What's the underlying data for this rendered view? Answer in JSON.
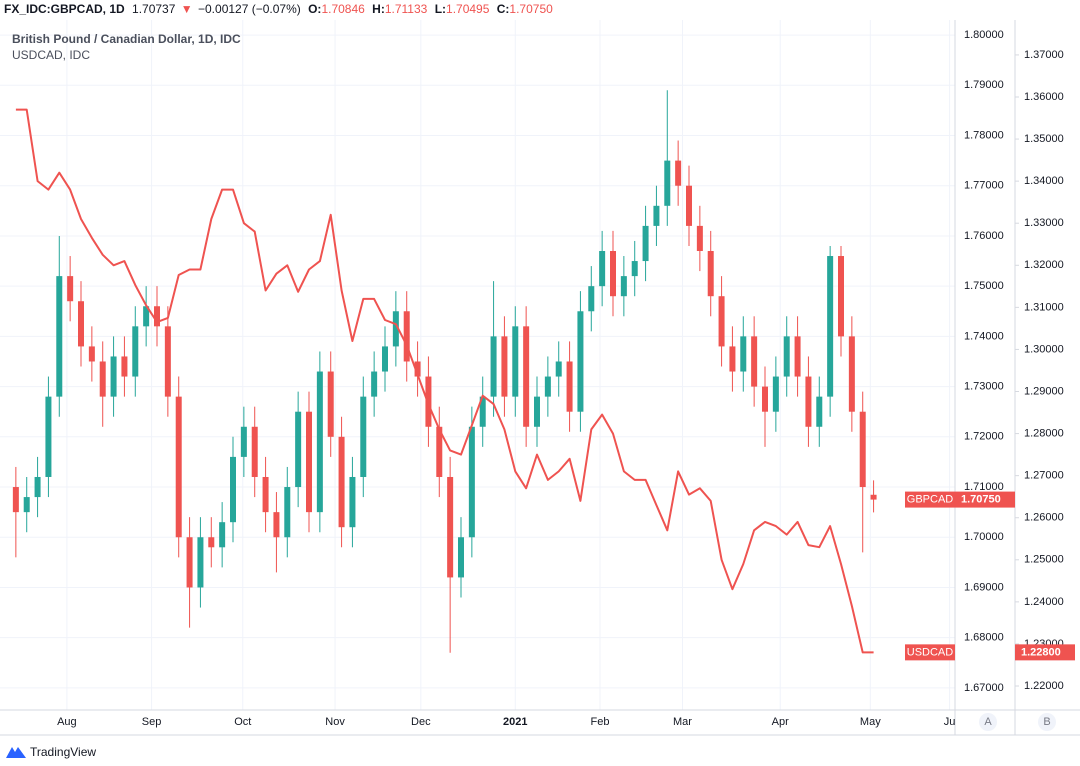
{
  "header": {
    "symbol": "FX_IDC:GBPCAD, 1D",
    "last": "1.70737",
    "arrow": "▼",
    "change": "−0.00127 (−0.07%)",
    "o_key": "O:",
    "o": "1.70846",
    "h_key": "H:",
    "h": "1.71133",
    "l_key": "L:",
    "l": "1.70495",
    "c_key": "C:",
    "c": "1.70750"
  },
  "chart_data": {
    "type": "candlestick",
    "title": "British Pound / Canadian Dollar, 1D, IDC",
    "subtitle": "USDCAD, IDC",
    "categories": [
      null,
      null,
      null,
      null,
      null,
      null,
      null,
      null,
      null,
      null,
      null,
      null,
      null,
      null,
      null,
      null,
      null,
      null,
      null,
      null,
      null,
      null,
      null,
      null,
      null,
      null,
      null,
      null,
      null,
      null,
      null,
      null,
      null,
      null,
      null,
      null,
      null,
      null,
      null,
      null,
      null,
      null,
      null,
      null,
      null,
      null,
      null,
      null,
      null,
      null,
      null,
      null,
      null,
      null,
      null,
      null,
      null,
      null,
      null,
      null,
      null,
      null,
      null,
      null,
      null,
      null,
      null,
      null,
      null,
      null,
      null,
      null,
      null,
      null,
      null,
      null,
      null,
      null,
      null,
      null
    ],
    "xlim": [
      -1,
      86.5
    ],
    "xticks": [
      {
        "value": 4.7,
        "label": "Aug"
      },
      {
        "value": 12.5,
        "label": "Sep"
      },
      {
        "value": 20.9,
        "label": "Oct"
      },
      {
        "value": 29.4,
        "label": "Nov"
      },
      {
        "value": 37.3,
        "label": "Dec"
      },
      {
        "value": 46,
        "label": "2021"
      },
      {
        "value": 53.8,
        "label": "Feb"
      },
      {
        "value": 61.4,
        "label": "Mar"
      },
      {
        "value": 70.4,
        "label": "Apr"
      },
      {
        "value": 78.7,
        "label": "May"
      },
      {
        "value": 86,
        "label": "Ju"
      }
    ],
    "ylim": [
      1.6656,
      1.803
    ],
    "yticks": [
      {
        "value": 1.67,
        "label": "1.67000"
      },
      {
        "value": 1.68,
        "label": "1.68000"
      },
      {
        "value": 1.69,
        "label": "1.69000"
      },
      {
        "value": 1.7,
        "label": "1.70000"
      },
      {
        "value": 1.71,
        "label": "1.71000"
      },
      {
        "value": 1.72,
        "label": "1.72000"
      },
      {
        "value": 1.73,
        "label": "1.73000"
      },
      {
        "value": 1.74,
        "label": "1.74000"
      },
      {
        "value": 1.75,
        "label": "1.75000"
      },
      {
        "value": 1.76,
        "label": "1.76000"
      },
      {
        "value": 1.77,
        "label": "1.77000"
      },
      {
        "value": 1.78,
        "label": "1.78000"
      },
      {
        "value": 1.79,
        "label": "1.79000"
      },
      {
        "value": 1.8,
        "label": "1.80000"
      }
    ],
    "y2lim": [
      1.2143,
      1.3783
    ],
    "y2ticks": [
      {
        "value": 1.22,
        "label": "1.22000"
      },
      {
        "value": 1.23,
        "label": "1.23000"
      },
      {
        "value": 1.24,
        "label": "1.24000"
      },
      {
        "value": 1.25,
        "label": "1.25000"
      },
      {
        "value": 1.26,
        "label": "1.26000"
      },
      {
        "value": 1.27,
        "label": "1.27000"
      },
      {
        "value": 1.28,
        "label": "1.28000"
      },
      {
        "value": 1.29,
        "label": "1.29000"
      },
      {
        "value": 1.3,
        "label": "1.30000"
      },
      {
        "value": 1.31,
        "label": "1.31000"
      },
      {
        "value": 1.32,
        "label": "1.32000"
      },
      {
        "value": 1.33,
        "label": "1.33000"
      },
      {
        "value": 1.34,
        "label": "1.34000"
      },
      {
        "value": 1.35,
        "label": "1.35000"
      },
      {
        "value": 1.36,
        "label": "1.36000"
      },
      {
        "value": 1.37,
        "label": "1.37000"
      }
    ],
    "grid": true,
    "series": [
      {
        "name": "GBPCAD",
        "color_up": "#26a69a",
        "color_down": "#ef5350",
        "last_label": "1.70750",
        "open": [
          1.71,
          1.705,
          1.708,
          1.712,
          1.728,
          1.752,
          1.747,
          1.738,
          1.735,
          1.728,
          1.736,
          1.732,
          1.742,
          1.746,
          1.742,
          1.728,
          1.7,
          1.69,
          1.7,
          1.698,
          1.703,
          1.716,
          1.722,
          1.712,
          1.705,
          1.7,
          1.71,
          1.725,
          1.705,
          1.733,
          1.72,
          1.702,
          1.712,
          1.728,
          1.733,
          1.738,
          1.745,
          1.735,
          1.732,
          1.722,
          1.712,
          1.692,
          1.7,
          1.722,
          1.728,
          1.74,
          1.728,
          1.742,
          1.722,
          1.728,
          1.732,
          1.735,
          1.725,
          1.745,
          1.75,
          1.757,
          1.748,
          1.752,
          1.755,
          1.762,
          1.766,
          1.775,
          1.77,
          1.762,
          1.757,
          1.748,
          1.738,
          1.733,
          1.74,
          1.73,
          1.725,
          1.732,
          1.74,
          1.732,
          1.722,
          1.728,
          1.756,
          1.74,
          1.725,
          1.70846
        ],
        "high": [
          1.714,
          1.712,
          1.716,
          1.732,
          1.76,
          1.756,
          1.751,
          1.742,
          1.739,
          1.74,
          1.74,
          1.746,
          1.75,
          1.75,
          1.746,
          1.732,
          1.704,
          1.704,
          1.704,
          1.707,
          1.72,
          1.726,
          1.726,
          1.716,
          1.709,
          1.714,
          1.729,
          1.729,
          1.737,
          1.737,
          1.724,
          1.716,
          1.732,
          1.737,
          1.742,
          1.749,
          1.749,
          1.739,
          1.736,
          1.726,
          1.716,
          1.704,
          1.726,
          1.732,
          1.751,
          1.744,
          1.746,
          1.746,
          1.732,
          1.736,
          1.739,
          1.739,
          1.749,
          1.754,
          1.761,
          1.761,
          1.756,
          1.759,
          1.766,
          1.77,
          1.789,
          1.779,
          1.774,
          1.766,
          1.761,
          1.752,
          1.742,
          1.744,
          1.744,
          1.734,
          1.736,
          1.744,
          1.744,
          1.736,
          1.732,
          1.758,
          1.758,
          1.744,
          1.729,
          1.71133
        ],
        "low": [
          1.696,
          1.701,
          1.704,
          1.708,
          1.724,
          1.743,
          1.734,
          1.731,
          1.722,
          1.724,
          1.728,
          1.728,
          1.738,
          1.738,
          1.724,
          1.696,
          1.682,
          1.686,
          1.694,
          1.694,
          1.699,
          1.712,
          1.708,
          1.701,
          1.693,
          1.696,
          1.706,
          1.701,
          1.701,
          1.716,
          1.698,
          1.698,
          1.708,
          1.724,
          1.729,
          1.734,
          1.731,
          1.728,
          1.718,
          1.708,
          1.677,
          1.688,
          1.696,
          1.718,
          1.724,
          1.724,
          1.724,
          1.718,
          1.718,
          1.724,
          1.728,
          1.721,
          1.721,
          1.741,
          1.746,
          1.744,
          1.744,
          1.748,
          1.751,
          1.758,
          1.762,
          1.766,
          1.758,
          1.753,
          1.744,
          1.734,
          1.729,
          1.729,
          1.726,
          1.718,
          1.721,
          1.728,
          1.728,
          1.718,
          1.718,
          1.724,
          1.736,
          1.721,
          1.697,
          1.70495
        ],
        "close": [
          1.705,
          1.708,
          1.712,
          1.728,
          1.752,
          1.747,
          1.738,
          1.735,
          1.728,
          1.736,
          1.732,
          1.742,
          1.746,
          1.742,
          1.728,
          1.7,
          1.69,
          1.7,
          1.698,
          1.703,
          1.716,
          1.722,
          1.712,
          1.705,
          1.7,
          1.71,
          1.725,
          1.705,
          1.733,
          1.72,
          1.702,
          1.712,
          1.728,
          1.733,
          1.738,
          1.745,
          1.735,
          1.732,
          1.722,
          1.712,
          1.692,
          1.7,
          1.722,
          1.728,
          1.74,
          1.728,
          1.742,
          1.722,
          1.728,
          1.732,
          1.735,
          1.725,
          1.745,
          1.75,
          1.757,
          1.748,
          1.752,
          1.755,
          1.762,
          1.766,
          1.775,
          1.77,
          1.762,
          1.757,
          1.748,
          1.738,
          1.733,
          1.74,
          1.73,
          1.725,
          1.732,
          1.74,
          1.732,
          1.722,
          1.728,
          1.756,
          1.74,
          1.725,
          1.71,
          1.7075
        ]
      },
      {
        "name": "USDCAD",
        "type": "line",
        "axis": "y2",
        "color": "#ef5350",
        "last_label": "1.22800",
        "values": [
          1.357,
          1.357,
          1.34,
          1.338,
          1.342,
          1.338,
          1.331,
          1.3265,
          1.3225,
          1.32,
          1.321,
          1.3153,
          1.3105,
          1.3065,
          1.3075,
          1.3177,
          1.319,
          1.319,
          1.331,
          1.338,
          1.338,
          1.33,
          1.328,
          1.314,
          1.318,
          1.32,
          1.3137,
          1.319,
          1.321,
          1.332,
          1.314,
          1.302,
          1.312,
          1.312,
          1.307,
          1.306,
          1.301,
          1.294,
          1.287,
          1.281,
          1.276,
          1.275,
          1.282,
          1.289,
          1.287,
          1.281,
          1.271,
          1.267,
          1.275,
          1.269,
          1.271,
          1.274,
          1.264,
          1.281,
          1.2845,
          1.28,
          1.271,
          1.269,
          1.269,
          1.263,
          1.257,
          1.271,
          1.2655,
          1.267,
          1.264,
          1.25,
          1.243,
          1.249,
          1.257,
          1.259,
          1.258,
          1.256,
          1.259,
          1.2535,
          1.253,
          1.258,
          1.249,
          1.239,
          1.228,
          1.228
        ]
      }
    ]
  },
  "axis_buttons": [
    "A",
    "B"
  ],
  "brand": "TradingView"
}
